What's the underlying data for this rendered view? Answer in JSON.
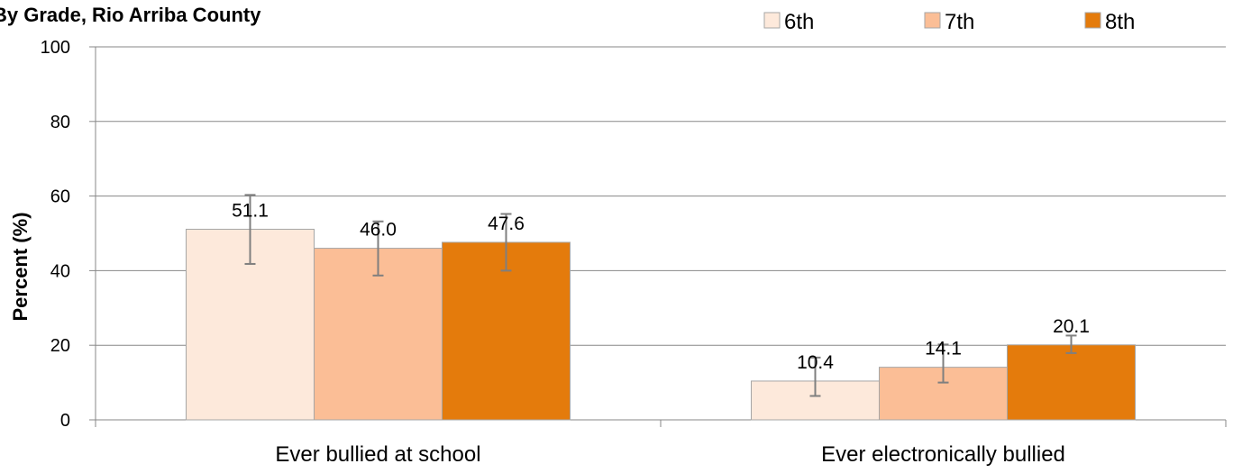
{
  "chart_data": {
    "type": "bar",
    "title": "By Grade, Rio Arriba County",
    "ylabel": "Percent (%)",
    "xlabel": "",
    "ylim": [
      0,
      100
    ],
    "yticks": [
      0,
      20,
      40,
      60,
      80,
      100
    ],
    "categories": [
      "Ever bullied at school",
      "Ever electronically bullied"
    ],
    "series": [
      {
        "name": "6th",
        "color": "#FDE9DB",
        "values": [
          51.1,
          10.4
        ],
        "ci_low": [
          41.8,
          6.4
        ],
        "ci_high": [
          60.3,
          16.7
        ]
      },
      {
        "name": "7th",
        "color": "#FBBE96",
        "values": [
          46.0,
          14.1
        ],
        "ci_low": [
          38.7,
          10.0
        ],
        "ci_high": [
          53.2,
          20.2
        ]
      },
      {
        "name": "8th",
        "color": "#E47B0C",
        "values": [
          47.6,
          20.1
        ],
        "ci_low": [
          40.0,
          17.9
        ],
        "ci_high": [
          55.2,
          22.6
        ]
      }
    ],
    "legend_position": "top-right",
    "grid": true
  }
}
